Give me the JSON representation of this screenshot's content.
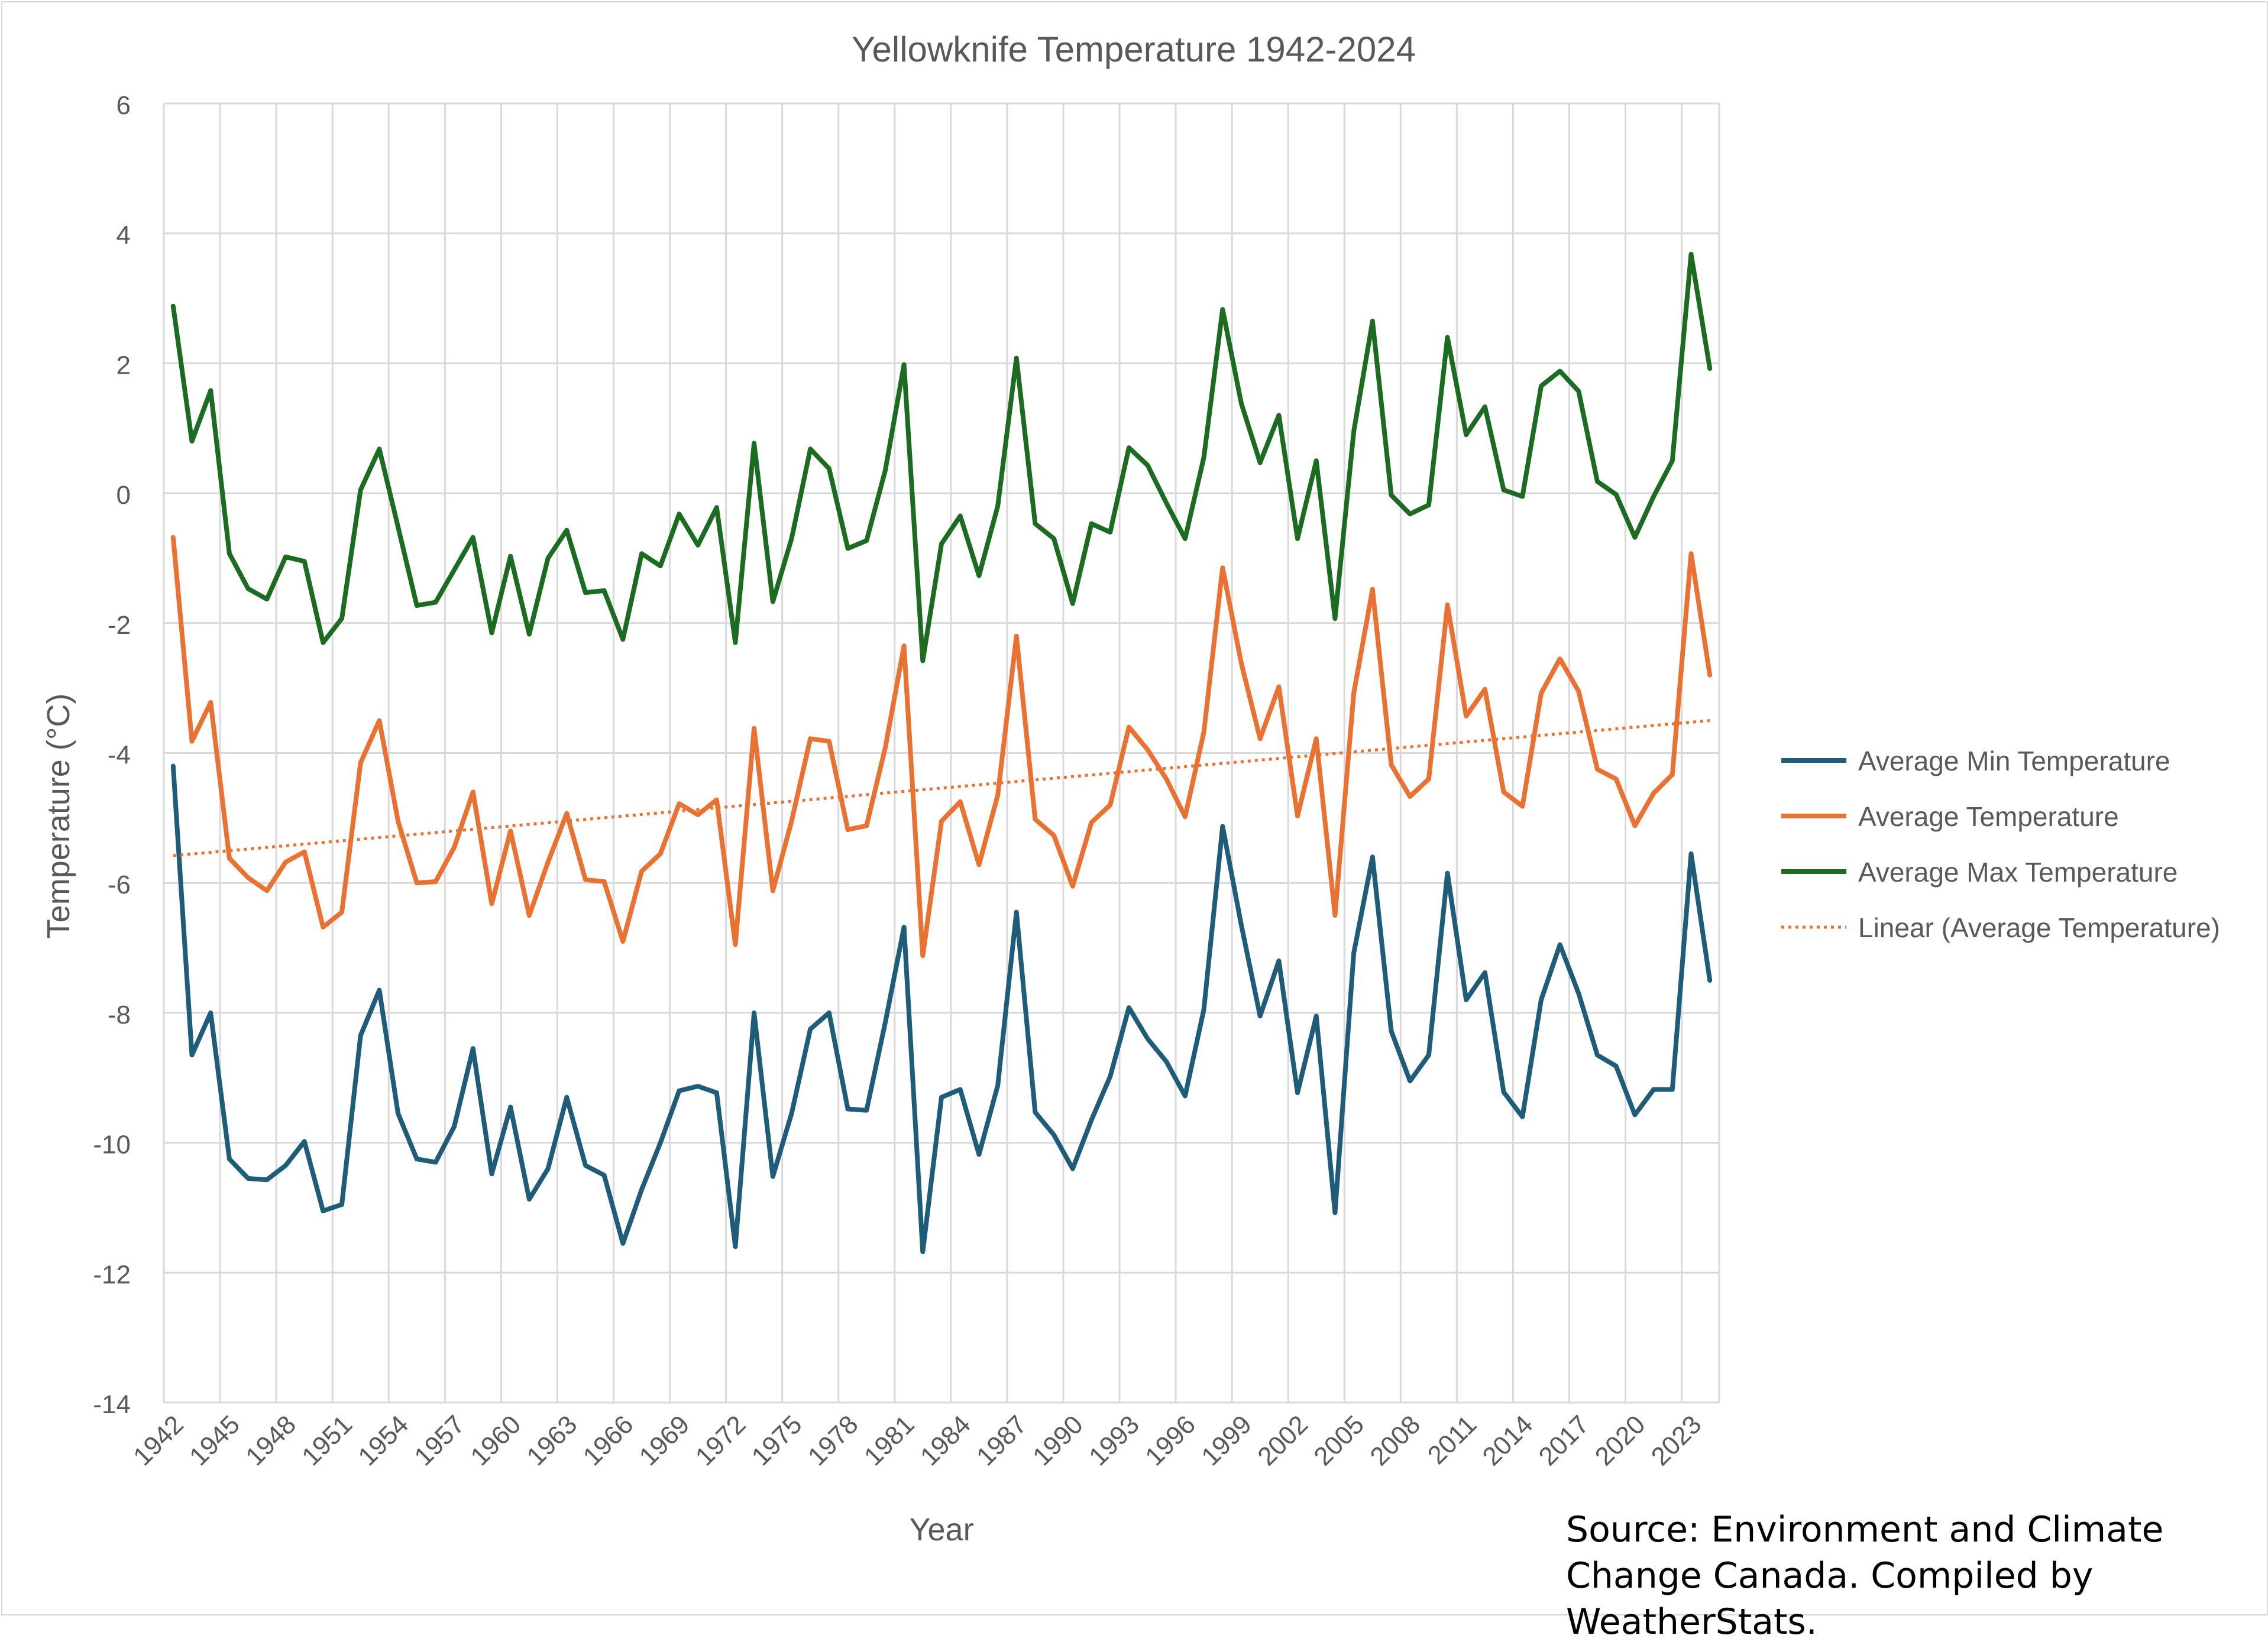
{
  "chart_data": {
    "type": "line",
    "title": "Yellowknife Temperature 1942-2024",
    "xlabel": "Year",
    "ylabel": "Temperature (°C)",
    "ylim": [
      -14,
      6
    ],
    "yticks": [
      6,
      4,
      2,
      0,
      -2,
      -4,
      -6,
      -8,
      -10,
      -12,
      -14
    ],
    "xticks": [
      "1942",
      "1945",
      "1948",
      "1951",
      "1954",
      "1957",
      "1960",
      "1963",
      "1966",
      "1969",
      "1972",
      "1975",
      "1978",
      "1981",
      "1984",
      "1987",
      "1990",
      "1993",
      "1996",
      "1999",
      "2002",
      "2005",
      "2008",
      "2011",
      "2014",
      "2017",
      "2020",
      "2023"
    ],
    "x_start": 1942,
    "x_end": 2025,
    "grid": true,
    "legend_position": "right",
    "series": [
      {
        "name": "Average Min Temperature",
        "color": "#1f5c7a",
        "values": [
          -4.2,
          -8.65,
          -8.0,
          -10.25,
          -10.55,
          -10.57,
          -10.35,
          -9.98,
          -11.05,
          -10.95,
          -8.35,
          -7.65,
          -9.55,
          -10.25,
          -10.3,
          -9.75,
          -8.55,
          -10.48,
          -9.45,
          -10.87,
          -10.4,
          -9.3,
          -10.35,
          -10.5,
          -11.55,
          -10.72,
          -10.0,
          -9.2,
          -9.13,
          -9.23,
          -11.6,
          -8.0,
          -10.52,
          -9.55,
          -8.25,
          -8.0,
          -9.48,
          -9.5,
          -8.15,
          -6.68,
          -11.68,
          -9.3,
          -9.18,
          -10.18,
          -9.12,
          -6.45,
          -9.53,
          -9.88,
          -10.4,
          -9.65,
          -8.98,
          -7.92,
          -8.4,
          -8.75,
          -9.28,
          -7.95,
          -5.13,
          -6.65,
          -8.05,
          -7.2,
          -9.23,
          -8.05,
          -11.08,
          -7.08,
          -5.6,
          -8.28,
          -9.05,
          -8.65,
          -5.85,
          -7.8,
          -7.38,
          -9.22,
          -9.6,
          -7.8,
          -6.95,
          -7.7,
          -8.65,
          -8.82,
          -9.57,
          -9.18,
          -9.18,
          -5.55,
          -7.5
        ]
      },
      {
        "name": "Average Temperature",
        "color": "#e97132",
        "values": [
          -0.68,
          -3.82,
          -3.22,
          -5.62,
          -5.92,
          -6.12,
          -5.68,
          -5.52,
          -6.68,
          -6.45,
          -4.15,
          -3.5,
          -5.05,
          -6.0,
          -5.98,
          -5.45,
          -4.6,
          -6.32,
          -5.2,
          -6.5,
          -5.68,
          -4.93,
          -5.95,
          -5.98,
          -6.9,
          -5.82,
          -5.55,
          -4.78,
          -4.95,
          -4.72,
          -6.95,
          -3.62,
          -6.12,
          -5.05,
          -3.78,
          -3.82,
          -5.18,
          -5.12,
          -3.92,
          -2.35,
          -7.12,
          -5.05,
          -4.75,
          -5.72,
          -4.65,
          -2.2,
          -5.02,
          -5.27,
          -6.05,
          -5.07,
          -4.8,
          -3.6,
          -3.95,
          -4.4,
          -4.98,
          -3.68,
          -1.15,
          -2.62,
          -3.78,
          -2.98,
          -4.97,
          -3.78,
          -6.5,
          -3.08,
          -1.48,
          -4.18,
          -4.67,
          -4.4,
          -1.72,
          -3.43,
          -3.02,
          -4.6,
          -4.82,
          -3.08,
          -2.55,
          -3.05,
          -4.25,
          -4.4,
          -5.12,
          -4.62,
          -4.33,
          -0.93,
          -2.8
        ]
      },
      {
        "name": "Average Max Temperature",
        "color": "#1b6b20",
        "values": [
          2.88,
          0.8,
          1.58,
          -0.93,
          -1.47,
          -1.63,
          -0.98,
          -1.05,
          -2.3,
          -1.93,
          0.05,
          0.68,
          -0.52,
          -1.73,
          -1.68,
          -1.18,
          -0.68,
          -2.15,
          -0.97,
          -2.17,
          -1.0,
          -0.57,
          -1.53,
          -1.5,
          -2.25,
          -0.93,
          -1.12,
          -0.32,
          -0.8,
          -0.22,
          -2.3,
          0.77,
          -1.67,
          -0.7,
          0.68,
          0.38,
          -0.85,
          -0.73,
          0.35,
          1.98,
          -2.58,
          -0.78,
          -0.35,
          -1.27,
          -0.2,
          2.08,
          -0.47,
          -0.7,
          -1.7,
          -0.47,
          -0.6,
          0.7,
          0.43,
          -0.15,
          -0.7,
          0.55,
          2.83,
          1.38,
          0.47,
          1.2,
          -0.7,
          0.5,
          -1.93,
          0.95,
          2.65,
          -0.03,
          -0.32,
          -0.18,
          2.4,
          0.9,
          1.33,
          0.05,
          -0.05,
          1.65,
          1.88,
          1.57,
          0.18,
          -0.02,
          -0.68,
          -0.05,
          0.5,
          3.68,
          1.92
        ]
      }
    ],
    "trendline": {
      "name": "Linear (Average Temperature)",
      "color": "#e97132",
      "style": "dotted",
      "start": -5.58,
      "end": -3.5
    },
    "annotation": "Source: Environment and Climate Change Canada. Compiled by WeatherStats."
  }
}
